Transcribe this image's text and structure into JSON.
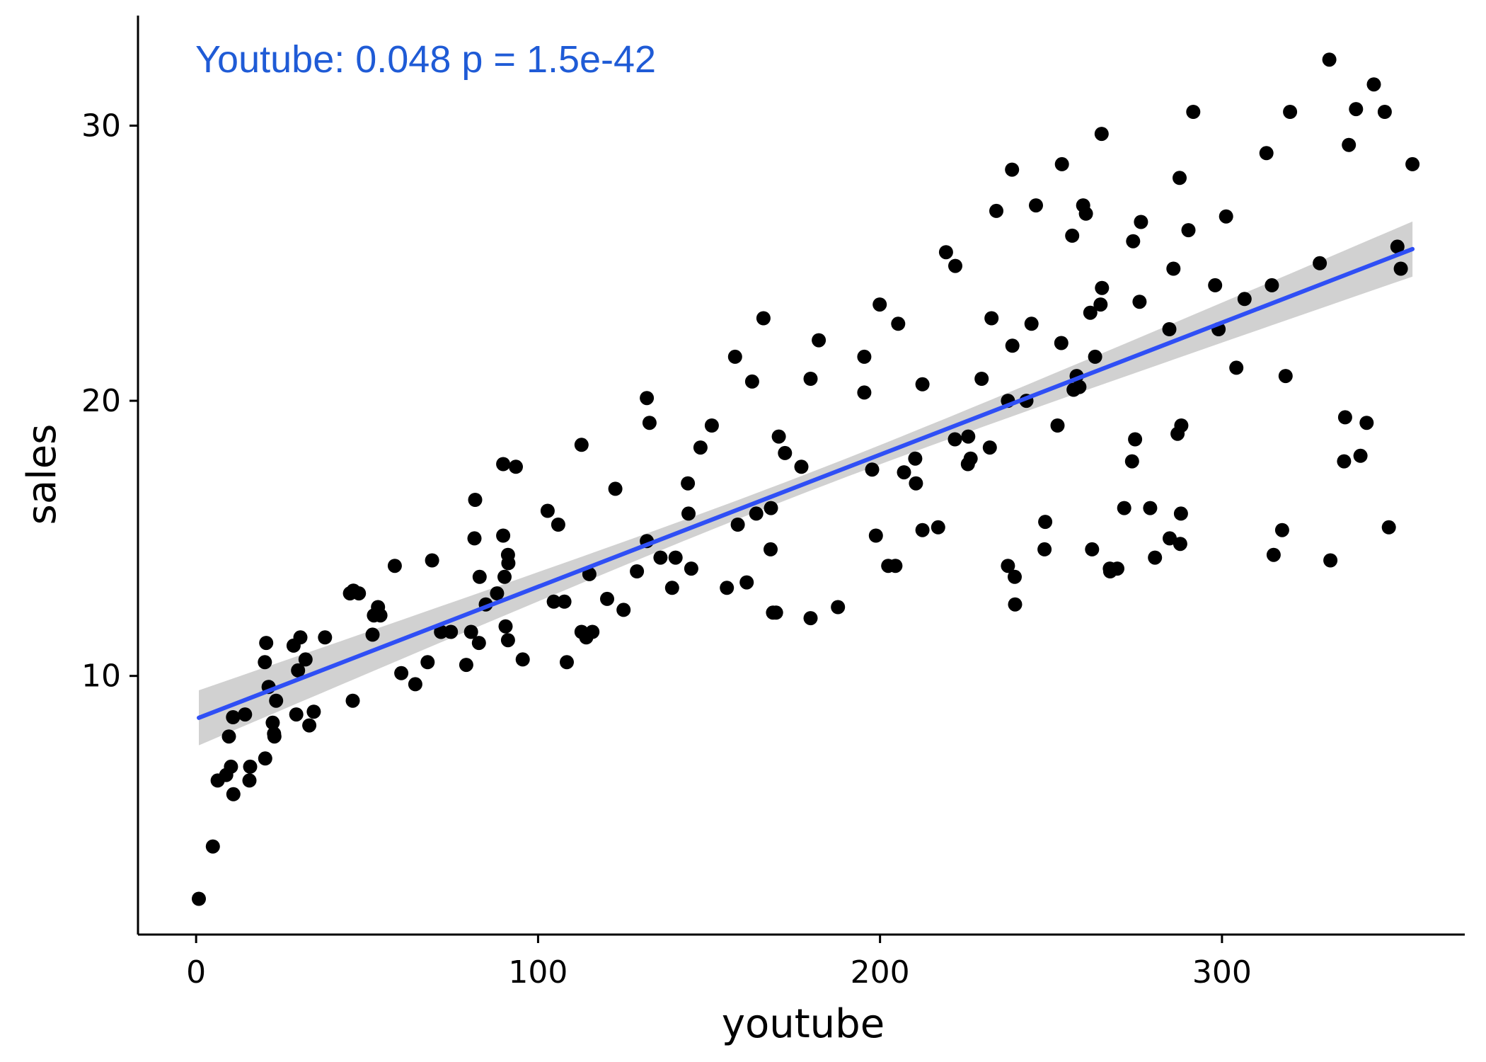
{
  "colors": {
    "line": "#2f4ff5",
    "band": "#cccccc",
    "points": "#000000",
    "annotation": "#1f5bd6",
    "axis": "#000000"
  },
  "chart_data": {
    "type": "scatter",
    "title": "",
    "xlabel": "youtube",
    "ylabel": "sales",
    "xlim": [
      -17,
      371
    ],
    "ylim": [
      0.6,
      34.0
    ],
    "xticks": [
      0,
      100,
      200,
      300
    ],
    "yticks": [
      10,
      20,
      30
    ],
    "grid": false,
    "annotation": "Youtube:  0.048  p =  1.5e-42",
    "regression": {
      "intercept": 8.44,
      "slope": 0.048,
      "x_range": [
        0.8,
        355.7
      ],
      "ci_halfwidth_ends": 1.0,
      "ci_halfwidth_center": 0.33
    },
    "points": [
      [
        0.8,
        1.9
      ],
      [
        4.9,
        3.8
      ],
      [
        6.3,
        6.2
      ],
      [
        8.8,
        6.4
      ],
      [
        9.6,
        7.8
      ],
      [
        10.2,
        6.7
      ],
      [
        10.9,
        5.7
      ],
      [
        10.8,
        8.5
      ],
      [
        14.3,
        8.6
      ],
      [
        15.8,
        6.7
      ],
      [
        15.6,
        6.2
      ],
      [
        20.1,
        10.5
      ],
      [
        20.5,
        11.2
      ],
      [
        20.2,
        7.0
      ],
      [
        21.2,
        9.6
      ],
      [
        22.4,
        8.3
      ],
      [
        22.8,
        7.9
      ],
      [
        23.4,
        9.1
      ],
      [
        22.9,
        7.8
      ],
      [
        28.5,
        11.1
      ],
      [
        29.3,
        8.6
      ],
      [
        29.8,
        10.2
      ],
      [
        30.5,
        11.4
      ],
      [
        32.0,
        10.6
      ],
      [
        33.1,
        8.2
      ],
      [
        34.4,
        8.7
      ],
      [
        37.7,
        11.4
      ],
      [
        45.0,
        13.0
      ],
      [
        45.8,
        9.1
      ],
      [
        46.0,
        13.1
      ],
      [
        47.6,
        13.0
      ],
      [
        51.6,
        11.5
      ],
      [
        52.0,
        12.2
      ],
      [
        53.2,
        12.5
      ],
      [
        53.9,
        12.2
      ],
      [
        58.1,
        14.0
      ],
      [
        60.0,
        10.1
      ],
      [
        64.1,
        9.7
      ],
      [
        67.7,
        10.5
      ],
      [
        69.0,
        14.2
      ],
      [
        71.6,
        11.6
      ],
      [
        74.5,
        11.6
      ],
      [
        79.0,
        10.4
      ],
      [
        80.4,
        11.6
      ],
      [
        81.4,
        15.0
      ],
      [
        81.6,
        16.4
      ],
      [
        82.7,
        11.2
      ],
      [
        82.9,
        13.6
      ],
      [
        84.7,
        12.6
      ],
      [
        88.0,
        13.0
      ],
      [
        89.8,
        15.1
      ],
      [
        89.8,
        17.7
      ],
      [
        90.2,
        13.6
      ],
      [
        90.5,
        11.8
      ],
      [
        91.2,
        11.3
      ],
      [
        91.2,
        14.4
      ],
      [
        91.3,
        14.1
      ],
      [
        93.5,
        17.6
      ],
      [
        95.5,
        10.6
      ],
      [
        102.8,
        16.0
      ],
      [
        104.6,
        12.7
      ],
      [
        105.9,
        15.5
      ],
      [
        107.7,
        12.7
      ],
      [
        108.4,
        10.5
      ],
      [
        112.7,
        18.4
      ],
      [
        112.7,
        11.6
      ],
      [
        114.1,
        11.4
      ],
      [
        115.0,
        13.7
      ],
      [
        115.9,
        11.6
      ],
      [
        120.2,
        12.8
      ],
      [
        122.6,
        16.8
      ],
      [
        125.0,
        12.4
      ],
      [
        128.9,
        13.8
      ],
      [
        131.8,
        14.9
      ],
      [
        131.8,
        20.1
      ],
      [
        132.6,
        19.2
      ],
      [
        135.8,
        14.3
      ],
      [
        139.2,
        13.2
      ],
      [
        140.2,
        14.3
      ],
      [
        143.8,
        17.0
      ],
      [
        144.0,
        15.9
      ],
      [
        144.8,
        13.9
      ],
      [
        147.5,
        18.3
      ],
      [
        150.8,
        19.1
      ],
      [
        155.2,
        13.2
      ],
      [
        157.6,
        21.6
      ],
      [
        158.4,
        15.5
      ],
      [
        161.0,
        13.4
      ],
      [
        162.6,
        20.7
      ],
      [
        163.8,
        15.9
      ],
      [
        165.9,
        23.0
      ],
      [
        168.1,
        16.1
      ],
      [
        168.0,
        14.6
      ],
      [
        168.7,
        12.3
      ],
      [
        169.6,
        12.3
      ],
      [
        170.4,
        18.7
      ],
      [
        172.2,
        18.1
      ],
      [
        177.0,
        17.6
      ],
      [
        179.7,
        20.8
      ],
      [
        179.7,
        12.1
      ],
      [
        182.1,
        22.2
      ],
      [
        187.7,
        12.5
      ],
      [
        195.4,
        21.6
      ],
      [
        195.4,
        20.3
      ],
      [
        197.7,
        17.5
      ],
      [
        198.8,
        15.1
      ],
      [
        199.9,
        23.5
      ],
      [
        202.4,
        14.0
      ],
      [
        204.5,
        14.0
      ],
      [
        205.3,
        22.8
      ],
      [
        207.0,
        17.4
      ],
      [
        210.3,
        17.9
      ],
      [
        210.5,
        17.0
      ],
      [
        212.4,
        15.3
      ],
      [
        212.4,
        20.6
      ],
      [
        217.0,
        15.4
      ],
      [
        219.3,
        25.4
      ],
      [
        221.9,
        18.6
      ],
      [
        222.0,
        24.9
      ],
      [
        225.7,
        17.7
      ],
      [
        225.8,
        18.7
      ],
      [
        226.5,
        17.9
      ],
      [
        229.7,
        20.8
      ],
      [
        232.1,
        18.3
      ],
      [
        232.6,
        23.0
      ],
      [
        234.0,
        26.9
      ],
      [
        237.4,
        14.0
      ],
      [
        237.4,
        20.0
      ],
      [
        238.6,
        28.4
      ],
      [
        238.7,
        22.0
      ],
      [
        239.4,
        13.6
      ],
      [
        239.5,
        12.6
      ],
      [
        242.8,
        20.0
      ],
      [
        244.3,
        22.8
      ],
      [
        245.6,
        27.1
      ],
      [
        248.1,
        14.6
      ],
      [
        248.3,
        15.6
      ],
      [
        251.9,
        19.1
      ],
      [
        253.2,
        28.6
      ],
      [
        253.0,
        22.1
      ],
      [
        256.2,
        26.0
      ],
      [
        256.6,
        20.4
      ],
      [
        257.5,
        20.9
      ],
      [
        258.3,
        20.5
      ],
      [
        259.4,
        27.1
      ],
      [
        260.2,
        26.8
      ],
      [
        261.5,
        23.2
      ],
      [
        262.0,
        14.6
      ],
      [
        262.9,
        21.6
      ],
      [
        264.5,
        23.5
      ],
      [
        264.9,
        24.1
      ],
      [
        264.8,
        29.7
      ],
      [
        267.2,
        13.9
      ],
      [
        267.3,
        13.8
      ],
      [
        269.4,
        13.9
      ],
      [
        271.4,
        16.1
      ],
      [
        273.7,
        17.8
      ],
      [
        274.0,
        25.8
      ],
      [
        274.6,
        18.6
      ],
      [
        275.9,
        23.6
      ],
      [
        276.3,
        26.5
      ],
      [
        279.0,
        16.1
      ],
      [
        280.4,
        14.3
      ],
      [
        284.7,
        15.0
      ],
      [
        284.6,
        22.6
      ],
      [
        285.8,
        24.8
      ],
      [
        287.0,
        18.8
      ],
      [
        287.6,
        28.1
      ],
      [
        288.1,
        19.1
      ],
      [
        287.8,
        14.8
      ],
      [
        288.0,
        15.9
      ],
      [
        290.2,
        26.2
      ],
      [
        291.6,
        30.5
      ],
      [
        298.0,
        24.2
      ],
      [
        299.0,
        22.6
      ],
      [
        301.2,
        26.7
      ],
      [
        304.2,
        21.2
      ],
      [
        306.6,
        23.7
      ],
      [
        313.0,
        29.0
      ],
      [
        314.6,
        24.2
      ],
      [
        315.1,
        14.4
      ],
      [
        317.6,
        15.3
      ],
      [
        318.6,
        20.9
      ],
      [
        319.9,
        30.5
      ],
      [
        328.6,
        25.0
      ],
      [
        331.4,
        32.4
      ],
      [
        331.7,
        14.2
      ],
      [
        335.7,
        17.8
      ],
      [
        336.0,
        19.4
      ],
      [
        337.1,
        29.3
      ],
      [
        339.2,
        30.6
      ],
      [
        340.5,
        18.0
      ],
      [
        342.3,
        19.2
      ],
      [
        344.4,
        31.5
      ],
      [
        347.6,
        30.5
      ],
      [
        348.8,
        15.4
      ],
      [
        351.3,
        25.6
      ],
      [
        352.3,
        24.8
      ],
      [
        355.7,
        28.6
      ]
    ]
  }
}
